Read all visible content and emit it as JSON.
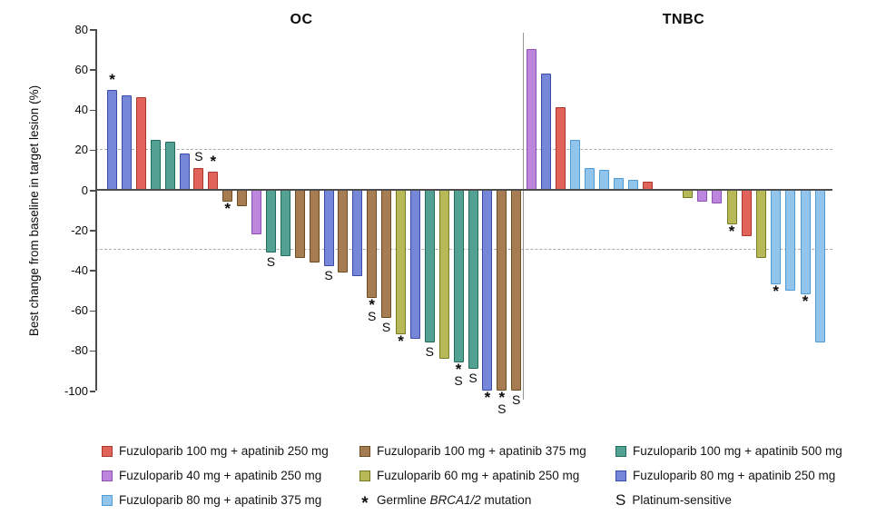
{
  "y_axis": {
    "label": "Best change from baseline in target lesion (%)",
    "ticks": [
      80,
      60,
      40,
      20,
      0,
      -20,
      -40,
      -60,
      -80,
      -100
    ]
  },
  "series": {
    "f100_a250": {
      "label": "Fuzuloparib 100 mg + apatinib 250 mg",
      "fill": "#E2635A",
      "border": "#A9372E"
    },
    "f40_a250": {
      "label": "Fuzuloparib 40 mg + apatinib 250 mg",
      "fill": "#BD86DD",
      "border": "#8F4FB5"
    },
    "f80_a375": {
      "label": "Fuzuloparib 80 mg + apatinib 375 mg",
      "fill": "#93C5EC",
      "border": "#4E9BD6"
    },
    "f100_a375": {
      "label": "Fuzuloparib 100 mg + apatinib 375 mg",
      "fill": "#A67D53",
      "border": "#6B4D20"
    },
    "f60_a250": {
      "label": "Fuzuloparib 60 mg + apatinib 250 mg",
      "fill": "#B7B958",
      "border": "#767A22"
    },
    "f100_a500": {
      "label": "Fuzuloparib 100 mg + apatinib 500 mg",
      "fill": "#52A192",
      "border": "#226C5D"
    },
    "f80_a250": {
      "label": "Fuzuloparib 80 mg + apatinib 250 mg",
      "fill": "#7686D9",
      "border": "#3B4AA5"
    }
  },
  "legend": {
    "brca_symbol": "*",
    "brca_prefix": "Germline ",
    "brca_italic": "BRCA1/2",
    "brca_suffix": " mutation",
    "plat_symbol": "S",
    "plat_label": "Platinum-sensitive"
  },
  "chart_data": {
    "type": "bar",
    "kind": "waterfall",
    "ylabel": "Best change from baseline in target lesion (%)",
    "ylim": [
      -100,
      80
    ],
    "reference_lines": [
      20,
      -30
    ],
    "marker_meanings": {
      "*": "Germline BRCA1/2 mutation",
      "S": "Platinum-sensitive"
    },
    "groups": [
      {
        "name": "OC",
        "bars": [
          {
            "v": 50,
            "s": "f80_a250",
            "m": "*"
          },
          {
            "v": 47,
            "s": "f80_a250",
            "m": ""
          },
          {
            "v": 46,
            "s": "f100_a250",
            "m": ""
          },
          {
            "v": 25,
            "s": "f100_a500",
            "m": ""
          },
          {
            "v": 24,
            "s": "f100_a500",
            "m": ""
          },
          {
            "v": 18,
            "s": "f80_a250",
            "m": ""
          },
          {
            "v": 11,
            "s": "f100_a250",
            "m": "S"
          },
          {
            "v": 9,
            "s": "f100_a250",
            "m": "*"
          },
          {
            "v": -6,
            "s": "f100_a375",
            "m": "*"
          },
          {
            "v": -8,
            "s": "f100_a375",
            "m": ""
          },
          {
            "v": -22,
            "s": "f40_a250",
            "m": ""
          },
          {
            "v": -31,
            "s": "f100_a500",
            "m": "S"
          },
          {
            "v": -33,
            "s": "f100_a500",
            "m": ""
          },
          {
            "v": -34,
            "s": "f100_a375",
            "m": ""
          },
          {
            "v": -36,
            "s": "f100_a375",
            "m": ""
          },
          {
            "v": -38,
            "s": "f80_a250",
            "m": "S"
          },
          {
            "v": -41,
            "s": "f100_a375",
            "m": ""
          },
          {
            "v": -43,
            "s": "f80_a250",
            "m": ""
          },
          {
            "v": -54,
            "s": "f100_a375",
            "m": "*S"
          },
          {
            "v": -64,
            "s": "f100_a375",
            "m": "S"
          },
          {
            "v": -72,
            "s": "f60_a250",
            "m": "*"
          },
          {
            "v": -74,
            "s": "f80_a250",
            "m": ""
          },
          {
            "v": -76,
            "s": "f100_a500",
            "m": "S"
          },
          {
            "v": -84,
            "s": "f60_a250",
            "m": ""
          },
          {
            "v": -86,
            "s": "f100_a500",
            "m": "*S"
          },
          {
            "v": -89,
            "s": "f100_a500",
            "m": "S"
          },
          {
            "v": -100,
            "s": "f80_a250",
            "m": "*"
          },
          {
            "v": -100,
            "s": "f100_a375",
            "m": "*S"
          },
          {
            "v": -100,
            "s": "f100_a375",
            "m": "S"
          }
        ]
      },
      {
        "name": "TNBC",
        "bars": [
          {
            "v": 70,
            "s": "f40_a250",
            "m": ""
          },
          {
            "v": 58,
            "s": "f80_a250",
            "m": ""
          },
          {
            "v": 41,
            "s": "f100_a250",
            "m": ""
          },
          {
            "v": 25,
            "s": "f80_a375",
            "m": ""
          },
          {
            "v": 11,
            "s": "f80_a375",
            "m": ""
          },
          {
            "v": 10,
            "s": "f80_a375",
            "m": ""
          },
          {
            "v": 6,
            "s": "f80_a375",
            "m": ""
          },
          {
            "v": 5,
            "s": "f80_a375",
            "m": ""
          },
          {
            "v": 4,
            "s": "f100_a250",
            "m": ""
          },
          {
            "v": -4,
            "s": "f60_a250",
            "m": ""
          },
          {
            "v": -6,
            "s": "f40_a250",
            "m": ""
          },
          {
            "v": -7,
            "s": "f40_a250",
            "m": ""
          },
          {
            "v": -17,
            "s": "f60_a250",
            "m": "*"
          },
          {
            "v": -23,
            "s": "f100_a250",
            "m": ""
          },
          {
            "v": -34,
            "s": "f60_a250",
            "m": ""
          },
          {
            "v": -47,
            "s": "f80_a375",
            "m": "*"
          },
          {
            "v": -50,
            "s": "f80_a375",
            "m": ""
          },
          {
            "v": -52,
            "s": "f80_a375",
            "m": "*"
          },
          {
            "v": -76,
            "s": "f80_a375",
            "m": ""
          }
        ]
      }
    ]
  }
}
